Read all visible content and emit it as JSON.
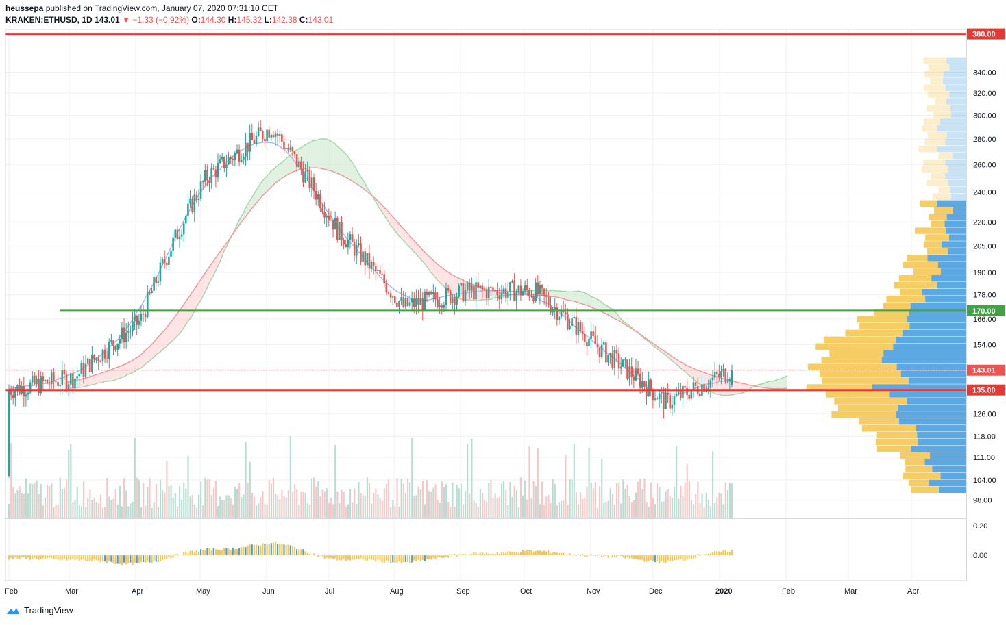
{
  "header": {
    "author": "heussepa",
    "published_text": "published on TradingView.com, January 07, 2020 07:31:10 CET",
    "symbol": "KRAKEN:ETHUSD, 1D",
    "last": "143.01",
    "change": "−1.33 (−0.92%)",
    "o_label": "O:",
    "o": "144.30",
    "h_label": "H:",
    "h": "145.32",
    "l_label": "L:",
    "l": "142.38",
    "c_label": "C:",
    "c": "143.01"
  },
  "footer": {
    "brand": "TradingView"
  },
  "colors": {
    "up": "#26a69a",
    "down": "#ef5350",
    "resistance": "#e53935",
    "support_green": "#43a047",
    "cloud_bull": "#c8e6c9",
    "cloud_bear": "#ffcdd2",
    "kijun": "#b0b4f0",
    "vp_up": "#4a9fe0",
    "vp_down": "#f5c653"
  },
  "chart_data": {
    "type": "candlestick",
    "instrument": "KRAKEN:ETHUSD",
    "timeframe": "1D",
    "x_tick_labels": [
      "Feb",
      "Mar",
      "Apr",
      "May",
      "Jun",
      "Jul",
      "Aug",
      "Sep",
      "Oct",
      "Nov",
      "Dec",
      "2020",
      "Feb",
      "Mar",
      "Apr"
    ],
    "y_tick_labels": [
      "340.00",
      "320.00",
      "300.00",
      "280.00",
      "260.00",
      "240.00",
      "220.00",
      "205.00",
      "190.00",
      "178.00",
      "166.00",
      "154.00",
      "126.00",
      "118.00",
      "111.00",
      "104.00",
      "98.00"
    ],
    "y_scale": "log",
    "y_range": [
      93,
      385
    ],
    "horizontal_levels": [
      {
        "label": "380.00",
        "value": 380,
        "color": "#e53935"
      },
      {
        "label": "170.00",
        "value": 170,
        "color": "#43a047"
      },
      {
        "label": "135.00",
        "value": 135,
        "color": "#e53935"
      }
    ],
    "last_price_label": "143.01",
    "monthly_closes": [
      {
        "month": "Feb",
        "close": 135
      },
      {
        "month": "Mar",
        "close": 140
      },
      {
        "month": "Apr",
        "close": 165
      },
      {
        "month": "May",
        "close": 250
      },
      {
        "month": "Jun",
        "close": 290
      },
      {
        "month": "Jul",
        "close": 215
      },
      {
        "month": "Aug",
        "close": 172
      },
      {
        "month": "Sep",
        "close": 180
      },
      {
        "month": "Oct",
        "close": 180
      },
      {
        "month": "Nov",
        "close": 152
      },
      {
        "month": "Dec",
        "close": 130
      },
      {
        "month": "2020",
        "close": 143
      }
    ],
    "oscillator": {
      "y_tick_labels": [
        "0.20",
        "0.00"
      ],
      "y_range": [
        -0.17,
        0.25
      ]
    },
    "volume_profile": "visible on right side; largest volume near 135–140"
  }
}
